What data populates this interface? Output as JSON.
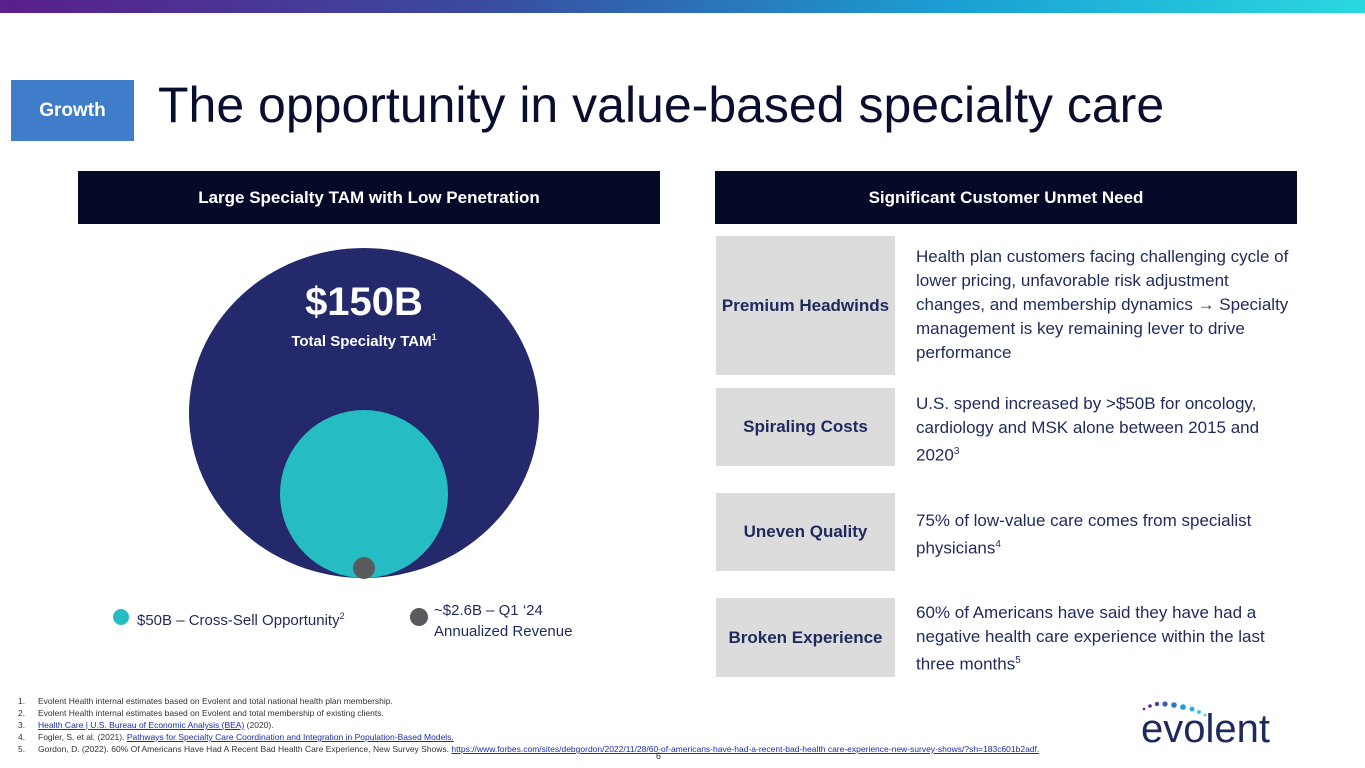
{
  "section_badge": "Growth",
  "title": "The opportunity in value-based specialty care",
  "left_panel": {
    "header": "Large Specialty TAM with Low Penetration",
    "tam_value": "$150B",
    "tam_label": "Total Specialty TAM",
    "tam_sup": "1",
    "legend": [
      {
        "text": "$50B – Cross-Sell Opportunity",
        "sup": "2",
        "color": "#26bcc4"
      },
      {
        "line1": "~$2.6B – Q1 ‘24",
        "line2": "Annualized Revenue",
        "color": "#595a5e"
      }
    ],
    "colors": {
      "total": "#23296a",
      "cross_sell": "#26bcc4",
      "revenue": "#595a5e"
    }
  },
  "right_panel": {
    "header": "Significant Customer Unmet Need",
    "rows": [
      {
        "label": "Premium Headwinds",
        "text": "Health plan customers facing challenging cycle of lower pricing, unfavorable risk adjustment changes, and membership dynamics → Specialty management is key remaining lever to drive performance",
        "sup": ""
      },
      {
        "label": "Spiraling Costs",
        "text": "U.S. spend increased by >$50B for oncology, cardiology and MSK alone between 2015 and 2020",
        "sup": "3"
      },
      {
        "label": "Uneven Quality",
        "text": "75% of low-value care comes from specialist physicians",
        "sup": "4"
      },
      {
        "label": "Broken Experience",
        "text": "60% of Americans have said they have had a negative health care experience within the last three months",
        "sup": "5"
      }
    ]
  },
  "footnotes": [
    {
      "num": "1.",
      "text": "Evolent Health internal estimates based on Evolent and total national health plan membership.",
      "link": "",
      "after": ""
    },
    {
      "num": "2.",
      "text": "Evolent Health internal estimates based on Evolent and total membership of existing clients.",
      "link": "",
      "after": ""
    },
    {
      "num": "3.",
      "text": "",
      "link": "Health Care | U.S. Bureau of Economic Analysis (BEA)",
      "after": " (2020)."
    },
    {
      "num": "4.",
      "text": "Fogler, S. et al. (2021). ",
      "link": "Pathways for Specialty Care Coordination and Integration in Population-Based Models.",
      "after": ""
    },
    {
      "num": "5.",
      "text": "Gordon, D. (2022). 60% Of Americans Have Had A Recent Bad Health Care Experience, New Survey Shows. ",
      "link": "https://www.forbes.com/sites/debgordon/2022/11/28/60-of-americans-have-had-a-recent-bad-health care-experience-new-survey-shows/?sh=183c601b2adf.",
      "after": ""
    }
  ],
  "page_number": "6",
  "logo_text": "evolent"
}
